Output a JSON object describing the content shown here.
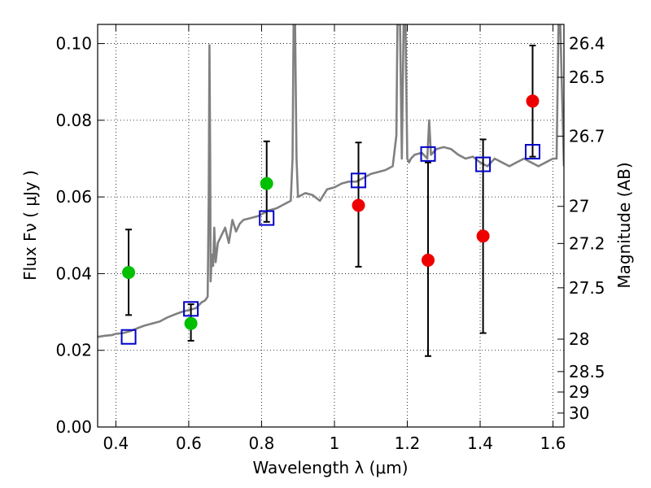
{
  "chart_data": {
    "type": "scatter",
    "xlabel": "Wavelength  λ (μm)",
    "ylabel": "Flux  Fν  ( μJy )",
    "y2label": "Magnitude (AB)",
    "xlim": [
      0.35,
      1.63
    ],
    "ylim": [
      0.0,
      0.105
    ],
    "grid": true,
    "x_ticks": [
      {
        "value": 0.4,
        "label": "0.4"
      },
      {
        "value": 0.6,
        "label": "0.6"
      },
      {
        "value": 0.8,
        "label": "0.8"
      },
      {
        "value": 1.0,
        "label": "1"
      },
      {
        "value": 1.2,
        "label": "1.2"
      },
      {
        "value": 1.4,
        "label": "1.4"
      },
      {
        "value": 1.6,
        "label": "1.6"
      }
    ],
    "y_ticks": [
      {
        "value": 0.0,
        "label": "0.00"
      },
      {
        "value": 0.02,
        "label": "0.02"
      },
      {
        "value": 0.04,
        "label": "0.04"
      },
      {
        "value": 0.06,
        "label": "0.06"
      },
      {
        "value": 0.08,
        "label": "0.08"
      },
      {
        "value": 0.1,
        "label": "0.10"
      }
    ],
    "mag_ticks": [
      {
        "value": 26.4,
        "label": "26.4"
      },
      {
        "value": 26.5,
        "label": "26.5"
      },
      {
        "value": 26.7,
        "label": "26.7"
      },
      {
        "value": 27.0,
        "label": "27"
      },
      {
        "value": 27.2,
        "label": "27.2"
      },
      {
        "value": 27.5,
        "label": "27.5"
      },
      {
        "value": 28.0,
        "label": "28"
      },
      {
        "value": 28.5,
        "label": "28.5"
      },
      {
        "value": 29.0,
        "label": "29"
      },
      {
        "value": 30.0,
        "label": "30"
      }
    ],
    "colors": {
      "spectrum": "#808080",
      "observed_optical": "#00c000",
      "observed_nir": "#ee0000",
      "model_photometry": "#0000cc",
      "errorbar": "#000000"
    },
    "spectrum": {
      "x": [
        0.35,
        0.37,
        0.39,
        0.4,
        0.42,
        0.44,
        0.46,
        0.48,
        0.5,
        0.52,
        0.54,
        0.56,
        0.58,
        0.6,
        0.62,
        0.635,
        0.645,
        0.652,
        0.655,
        0.657,
        0.659,
        0.66,
        0.6635,
        0.667,
        0.67,
        0.674,
        0.68,
        0.69,
        0.7,
        0.71,
        0.72,
        0.73,
        0.74,
        0.75,
        0.77,
        0.79,
        0.8,
        0.81,
        0.82,
        0.84,
        0.86,
        0.88,
        0.885,
        0.888,
        0.892,
        0.896,
        0.9,
        0.92,
        0.94,
        0.96,
        0.98,
        1.0,
        1.02,
        1.04,
        1.06,
        1.08,
        1.1,
        1.12,
        1.14,
        1.16,
        1.17,
        1.173,
        1.18,
        1.185,
        1.19,
        1.195,
        1.2,
        1.205,
        1.21,
        1.22,
        1.24,
        1.255,
        1.26,
        1.265,
        1.28,
        1.3,
        1.32,
        1.34,
        1.36,
        1.38,
        1.4,
        1.42,
        1.44,
        1.46,
        1.48,
        1.5,
        1.52,
        1.54,
        1.56,
        1.58,
        1.6,
        1.61,
        1.615,
        1.62,
        1.63
      ],
      "y": [
        0.0235,
        0.0238,
        0.024,
        0.0243,
        0.0245,
        0.025,
        0.0258,
        0.0265,
        0.027,
        0.0275,
        0.0285,
        0.0293,
        0.03,
        0.0305,
        0.031,
        0.0325,
        0.033,
        0.034,
        0.06,
        0.0996,
        0.07,
        0.038,
        0.045,
        0.042,
        0.052,
        0.043,
        0.048,
        0.05,
        0.052,
        0.048,
        0.054,
        0.051,
        0.053,
        0.054,
        0.0545,
        0.055,
        0.0555,
        0.056,
        0.0565,
        0.057,
        0.058,
        0.059,
        0.07,
        0.105,
        0.105,
        0.07,
        0.06,
        0.061,
        0.0605,
        0.059,
        0.062,
        0.0625,
        0.0635,
        0.064,
        0.064,
        0.065,
        0.066,
        0.0665,
        0.067,
        0.068,
        0.076,
        0.105,
        0.105,
        0.07,
        0.105,
        0.105,
        0.07,
        0.069,
        0.07,
        0.071,
        0.0715,
        0.07,
        0.08,
        0.071,
        0.0725,
        0.073,
        0.0725,
        0.071,
        0.07,
        0.0705,
        0.069,
        0.068,
        0.07,
        0.069,
        0.068,
        0.069,
        0.07,
        0.069,
        0.068,
        0.069,
        0.07,
        0.07,
        0.105,
        0.105,
        0.068
      ]
    },
    "series": [
      {
        "marker": "circle",
        "color_key": "observed_optical",
        "x": [
          0.435,
          0.606,
          0.814
        ],
        "y": [
          0.0403,
          0.027,
          0.0635
        ],
        "yerr_low": [
          0.0292,
          0.0225,
          0.0535
        ],
        "yerr_high": [
          0.0515,
          0.032,
          0.0745
        ]
      },
      {
        "marker": "circle",
        "color_key": "observed_nir",
        "x": [
          1.066,
          1.257,
          1.408,
          1.544
        ],
        "y": [
          0.0578,
          0.0435,
          0.0498,
          0.085
        ],
        "yerr_low": [
          0.0418,
          0.0185,
          0.0245,
          0.0705
        ],
        "yerr_high": [
          0.0742,
          0.069,
          0.075,
          0.0995
        ]
      },
      {
        "marker": "open-square",
        "color_key": "model_photometry",
        "x": [
          0.435,
          0.606,
          0.814,
          1.066,
          1.257,
          1.408,
          1.544
        ],
        "y": [
          0.0235,
          0.0308,
          0.0545,
          0.0643,
          0.0712,
          0.0685,
          0.0718
        ]
      }
    ]
  }
}
